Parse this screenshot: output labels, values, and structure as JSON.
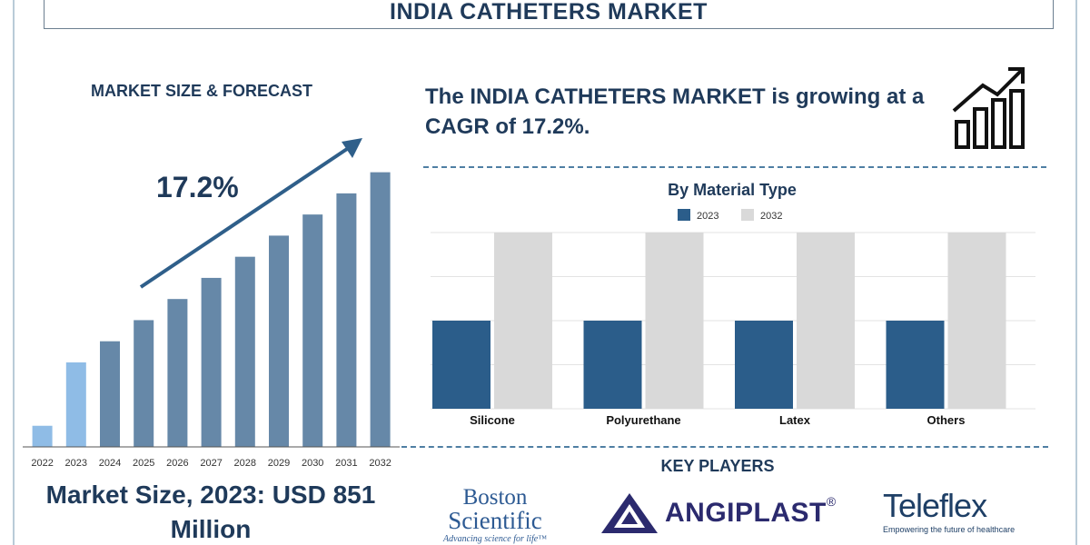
{
  "title": "INDIA CATHETERS MARKET",
  "market_size_title": "MARKET SIZE & FORECAST",
  "cagr_label": "17.2%",
  "market_size_text": "Market Size, 2023: USD 851 Million",
  "headline": "The INDIA CATHETERS MARKET is growing at a CAGR of 17.2%.",
  "key_players_title": "KEY PLAYERS",
  "logos": {
    "boston_line1": "Boston",
    "boston_line2": "Scientific",
    "boston_tagline": "Advancing science for life™",
    "angiplast": "ANGIPLAST",
    "angiplast_reg": "®",
    "teleflex": "Teleflex",
    "teleflex_tagline": "Empowering the future of healthcare"
  },
  "colors": {
    "navy": "#1f3a5a",
    "bar_2022": "#8fbce6",
    "bar_2023": "#8fbce6",
    "bar_forecast": "#6688a8",
    "series_2023": "#2b5d8a",
    "series_2032": "#d9d9d9"
  },
  "chart_data": [
    {
      "type": "bar",
      "title": "MARKET SIZE & FORECAST",
      "categories": [
        "2022",
        "2023",
        "2024",
        "2025",
        "2026",
        "2027",
        "2028",
        "2029",
        "2030",
        "2031",
        "2032"
      ],
      "values": [
        1.0,
        4.0,
        5.0,
        6.0,
        7.0,
        8.0,
        9.0,
        10.0,
        11.0,
        12.0,
        13.0
      ],
      "ylim": [
        0,
        13.5
      ],
      "annotation": "17.2%",
      "grid": false
    },
    {
      "type": "bar",
      "title": "By Material Type",
      "categories": [
        "Silicone",
        "Polyurethane",
        "Latex",
        "Others"
      ],
      "series": [
        {
          "name": "2023",
          "values": [
            2,
            2,
            2,
            2
          ]
        },
        {
          "name": "2032",
          "values": [
            4,
            4,
            4,
            4
          ]
        }
      ],
      "ylim": [
        0,
        4
      ],
      "legend": "top-center",
      "grid": true
    }
  ]
}
